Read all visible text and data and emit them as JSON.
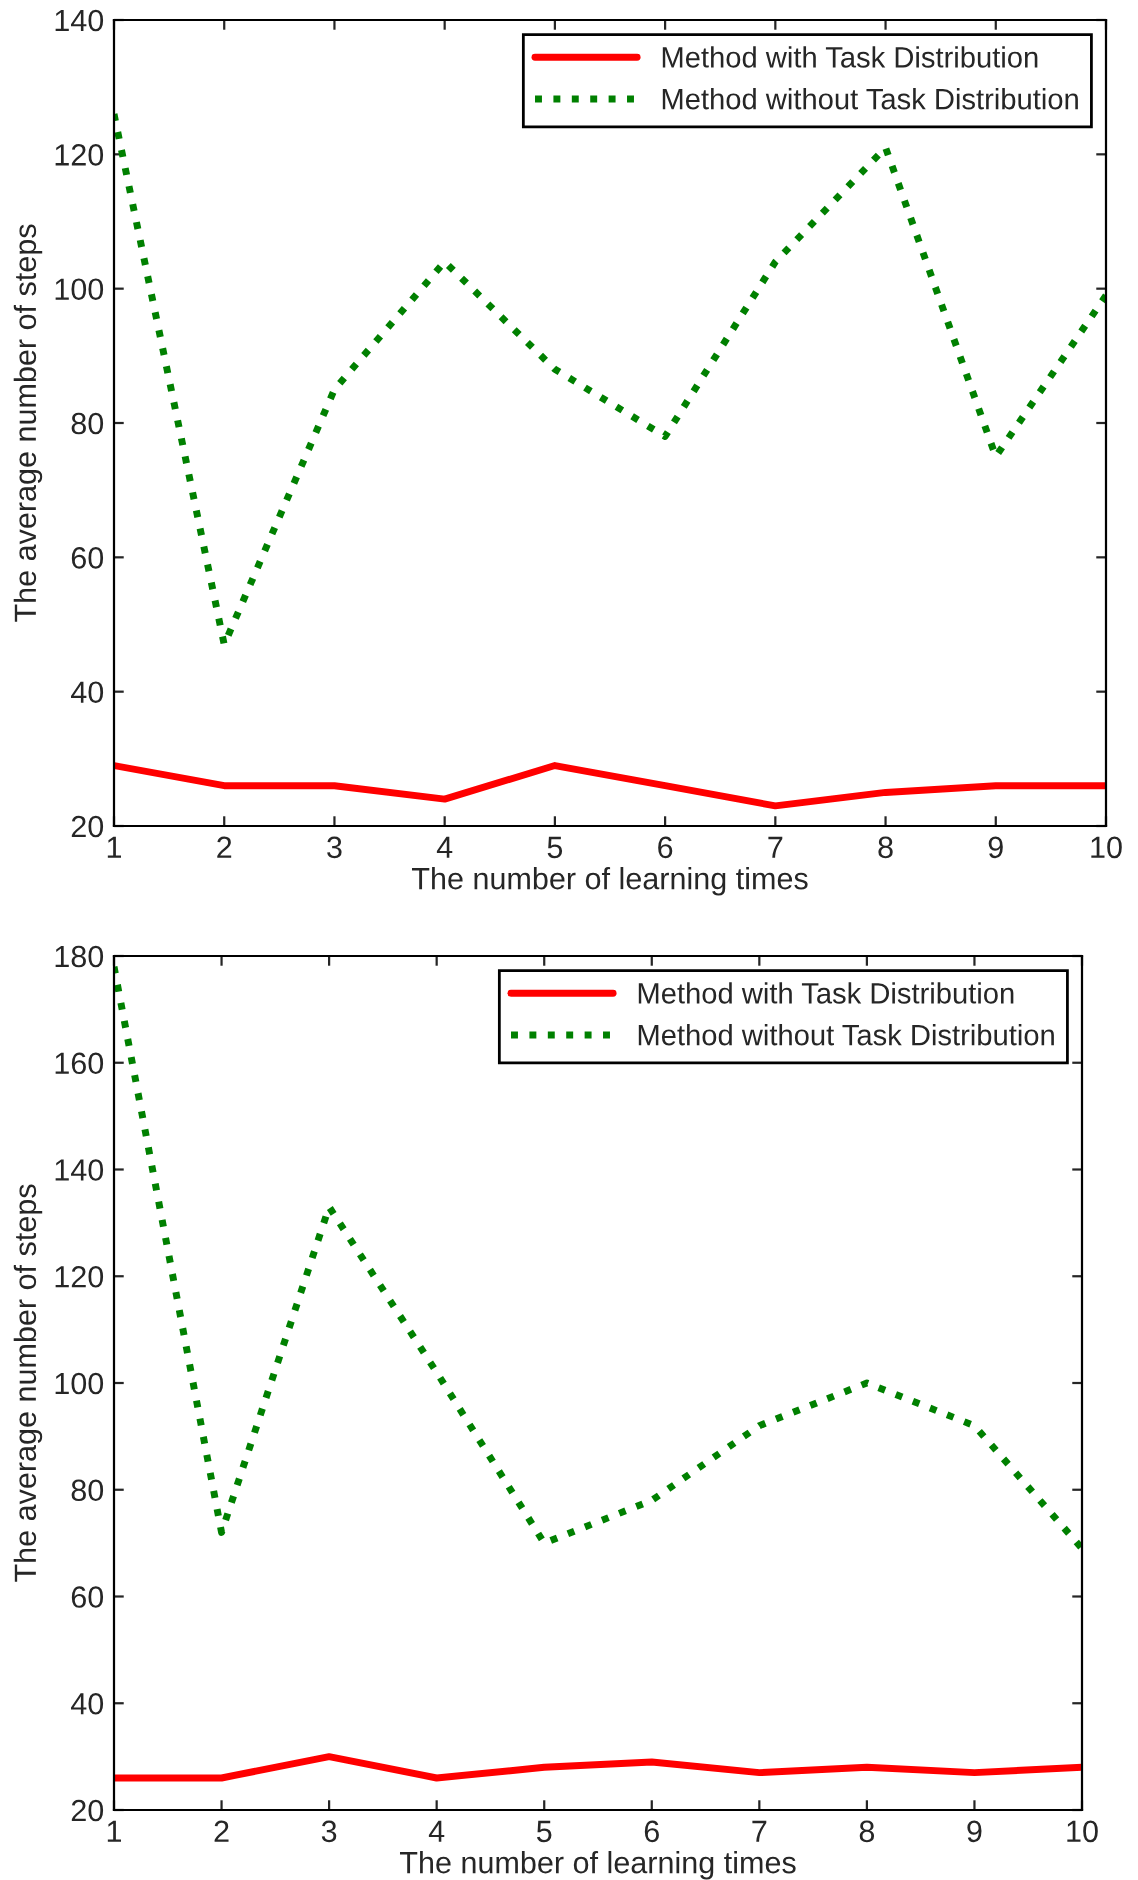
{
  "chart_data": [
    {
      "type": "line",
      "xlabel": "The number of learning times",
      "ylabel": "The average number of steps",
      "x": [
        1,
        2,
        3,
        4,
        5,
        6,
        7,
        8,
        9,
        10
      ],
      "xlim": [
        1,
        10
      ],
      "xticks": [
        1,
        2,
        3,
        4,
        5,
        6,
        7,
        8,
        9,
        10
      ],
      "ylim": [
        20,
        140
      ],
      "yticks": [
        20,
        40,
        60,
        80,
        100,
        120,
        140
      ],
      "legend": "top right",
      "grid": false,
      "series": [
        {
          "name": "Method with Task Distribution",
          "color": "#ff0000",
          "line_style": "solid",
          "values": [
            29,
            26,
            26,
            24,
            29,
            26,
            23,
            25,
            26,
            26
          ]
        },
        {
          "name": "Method without Task Distribution",
          "color": "#008000",
          "line_style": "dotted",
          "values": [
            126,
            47,
            85,
            104,
            88,
            78,
            104,
            121,
            75,
            99
          ]
        }
      ]
    },
    {
      "type": "line",
      "xlabel": "The number of learning times",
      "ylabel": "The average number of steps",
      "x": [
        1,
        2,
        3,
        4,
        5,
        6,
        7,
        8,
        9,
        10
      ],
      "xlim": [
        1,
        10
      ],
      "xticks": [
        1,
        2,
        3,
        4,
        5,
        6,
        7,
        8,
        9,
        10
      ],
      "ylim": [
        20,
        180
      ],
      "yticks": [
        20,
        40,
        60,
        80,
        100,
        120,
        140,
        160,
        180
      ],
      "legend": "top right",
      "grid": false,
      "series": [
        {
          "name": "Method with Task Distribution",
          "color": "#ff0000",
          "line_style": "solid",
          "values": [
            26,
            26,
            30,
            26,
            28,
            29,
            27,
            28,
            27,
            28
          ]
        },
        {
          "name": "Method without Task Distribution",
          "color": "#008000",
          "line_style": "dotted",
          "values": [
            178,
            72,
            133,
            102,
            70,
            78,
            92,
            100,
            92,
            69
          ]
        }
      ]
    }
  ]
}
